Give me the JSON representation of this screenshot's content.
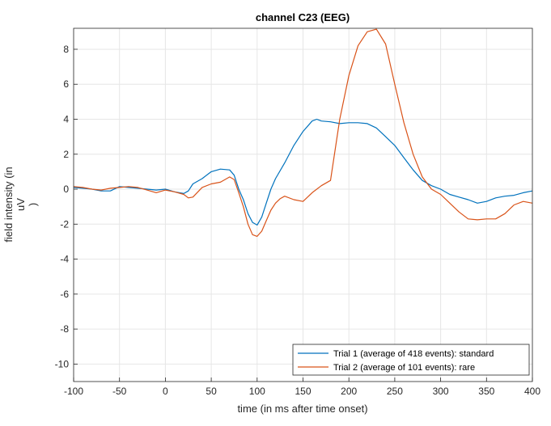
{
  "chart_data": {
    "type": "line",
    "title": "channel C23 (EEG)",
    "xlabel": "time (in ms after time onset)",
    "ylabel_lines": [
      "field intensity (in",
      "uV",
      ")"
    ],
    "xlim": [
      -100,
      400
    ],
    "ylim": [
      -11,
      9.2
    ],
    "xticks": [
      -100,
      -50,
      0,
      50,
      100,
      150,
      200,
      250,
      300,
      350,
      400
    ],
    "yticks": [
      -10,
      -8,
      -6,
      -4,
      -2,
      0,
      2,
      4,
      6,
      8
    ],
    "grid": true,
    "legend_position": "bottom-right",
    "series": [
      {
        "name": "Trial 1 (average of 418 events): standard",
        "color": "#0072BD",
        "x": [
          -100,
          -90,
          -80,
          -70,
          -60,
          -50,
          -40,
          -30,
          -20,
          -10,
          0,
          10,
          20,
          25,
          30,
          40,
          50,
          60,
          70,
          75,
          80,
          85,
          90,
          95,
          100,
          105,
          110,
          115,
          120,
          130,
          140,
          150,
          160,
          165,
          170,
          180,
          190,
          200,
          210,
          220,
          230,
          240,
          250,
          260,
          270,
          280,
          290,
          300,
          310,
          320,
          330,
          340,
          350,
          360,
          370,
          380,
          390,
          400
        ],
        "y": [
          0.1,
          0.05,
          0.0,
          -0.1,
          -0.1,
          0.15,
          0.1,
          0.05,
          0.0,
          -0.05,
          0.0,
          -0.15,
          -0.25,
          -0.1,
          0.3,
          0.6,
          1.0,
          1.15,
          1.1,
          0.8,
          0.0,
          -0.6,
          -1.4,
          -1.9,
          -2.05,
          -1.6,
          -0.8,
          0.0,
          0.6,
          1.5,
          2.5,
          3.3,
          3.9,
          4.0,
          3.9,
          3.85,
          3.75,
          3.8,
          3.8,
          3.75,
          3.5,
          3.0,
          2.5,
          1.8,
          1.1,
          0.5,
          0.2,
          0.0,
          -0.3,
          -0.45,
          -0.6,
          -0.8,
          -0.7,
          -0.5,
          -0.4,
          -0.35,
          -0.2,
          -0.1
        ]
      },
      {
        "name": "Trial 2 (average of 101 events): rare",
        "color": "#D95319",
        "x": [
          -100,
          -90,
          -80,
          -70,
          -60,
          -50,
          -40,
          -30,
          -20,
          -10,
          0,
          10,
          20,
          25,
          30,
          40,
          50,
          60,
          70,
          75,
          80,
          85,
          90,
          95,
          100,
          105,
          110,
          115,
          120,
          125,
          130,
          140,
          150,
          160,
          170,
          180,
          190,
          200,
          210,
          220,
          230,
          240,
          250,
          260,
          270,
          280,
          290,
          300,
          310,
          320,
          330,
          340,
          350,
          360,
          370,
          380,
          390,
          400
        ],
        "y": [
          0.15,
          0.1,
          0.0,
          -0.05,
          0.05,
          0.1,
          0.15,
          0.1,
          -0.05,
          -0.2,
          -0.05,
          -0.15,
          -0.3,
          -0.5,
          -0.45,
          0.1,
          0.3,
          0.4,
          0.7,
          0.55,
          -0.2,
          -1.0,
          -2.0,
          -2.6,
          -2.7,
          -2.4,
          -1.8,
          -1.2,
          -0.8,
          -0.55,
          -0.4,
          -0.6,
          -0.7,
          -0.2,
          0.2,
          0.5,
          4.0,
          6.5,
          8.2,
          9.0,
          9.15,
          8.3,
          6.0,
          3.8,
          2.0,
          0.7,
          0.0,
          -0.3,
          -0.8,
          -1.3,
          -1.7,
          -1.75,
          -1.7,
          -1.7,
          -1.4,
          -0.9,
          -0.7,
          -0.8
        ]
      }
    ]
  }
}
